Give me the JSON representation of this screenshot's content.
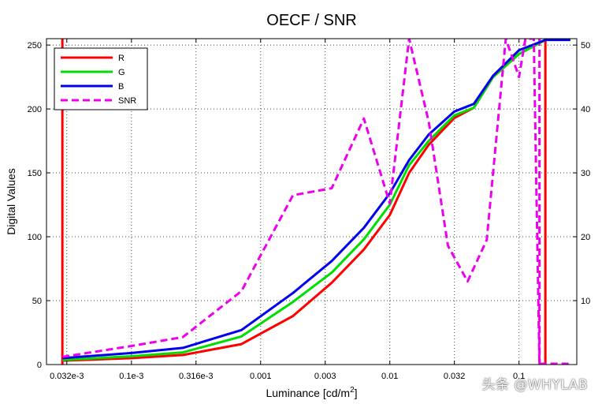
{
  "chart_data": {
    "type": "line",
    "title": "OECF / SNR",
    "xlabel": "Luminance [cd/m",
    "xlabel_sup": "2",
    "xlabel_end": "]",
    "ylabel": "Digital Values",
    "xscale": "log",
    "xlim": [
      2.2e-05,
      0.28
    ],
    "ylim": [
      0,
      255
    ],
    "y2lim": [
      0,
      51
    ],
    "xticks": [
      3.16e-05,
      0.0001,
      0.000316,
      0.001,
      0.00316,
      0.01,
      0.0316,
      0.1
    ],
    "xtick_labels": [
      "0.032e-3",
      "0.1e-3",
      "0.316e-3",
      "0.001",
      "0.003",
      "0.01",
      "0.032",
      "0.1"
    ],
    "yticks": [
      0,
      50,
      100,
      150,
      200,
      250
    ],
    "y2ticks": [
      10,
      20,
      30,
      40,
      50
    ],
    "grid": true,
    "legend_position": "top-left",
    "series": [
      {
        "name": "R",
        "color": "#ff0000",
        "dash": "",
        "axis": "left",
        "x": [
          2.92e-05,
          0.0001,
          0.00025,
          0.00071,
          0.00178,
          0.00355,
          0.0063,
          0.01,
          0.0141,
          0.02,
          0.0316,
          0.0447,
          0.063,
          0.1,
          0.16
        ],
        "values": [
          3,
          5,
          7.5,
          16,
          38,
          64,
          90,
          117,
          150,
          172,
          193,
          201,
          225,
          243,
          254
        ]
      },
      {
        "name": "G",
        "color": "#00dd00",
        "dash": "",
        "axis": "left",
        "x": [
          2.92e-05,
          0.0001,
          0.00025,
          0.00071,
          0.00178,
          0.00355,
          0.0063,
          0.01,
          0.0141,
          0.02,
          0.0316,
          0.0447,
          0.063,
          0.1,
          0.16
        ],
        "values": [
          3.5,
          6.5,
          9.5,
          22,
          49,
          72,
          98,
          125,
          156,
          175,
          195,
          201,
          225,
          243,
          254
        ]
      },
      {
        "name": "B",
        "color": "#0000ee",
        "dash": "",
        "axis": "left",
        "x": [
          2.92e-05,
          0.0001,
          0.00025,
          0.00071,
          0.00178,
          0.00355,
          0.0063,
          0.01,
          0.0141,
          0.02,
          0.0316,
          0.0447,
          0.063,
          0.1,
          0.16,
          0.25
        ],
        "values": [
          5,
          9,
          13,
          27,
          56,
          81,
          107,
          134,
          160,
          180,
          198,
          204,
          226,
          246,
          254,
          254
        ]
      },
      {
        "name": "SNR",
        "color": "#ee00ee",
        "dash": "9,5",
        "axis": "right",
        "x": [
          2.92e-05,
          0.0001,
          0.00025,
          0.00071,
          0.00178,
          0.00355,
          0.0063,
          0.01,
          0.0141,
          0.02,
          0.0282,
          0.04,
          0.0562,
          0.079,
          0.1,
          0.112,
          0.13,
          0.144
        ],
        "values": [
          1.2,
          2.9,
          4.3,
          11.5,
          26.5,
          27.6,
          38.5,
          25.2,
          51,
          38,
          18.6,
          13,
          19.5,
          51,
          45,
          51,
          51,
          0
        ]
      }
    ],
    "vlines": [
      {
        "x": 2.92e-05,
        "color": "#ff0000"
      },
      {
        "x": 0.16,
        "color": "#ff0000"
      },
      {
        "x": 0.144,
        "color": "#ee00ee",
        "dash": "9,5"
      }
    ],
    "snr_baseline": {
      "x": [
        0.144,
        0.25
      ],
      "value": 0,
      "color": "#ee00ee",
      "dash": "9,5"
    }
  },
  "watermark": "头条 @WHYLAB"
}
